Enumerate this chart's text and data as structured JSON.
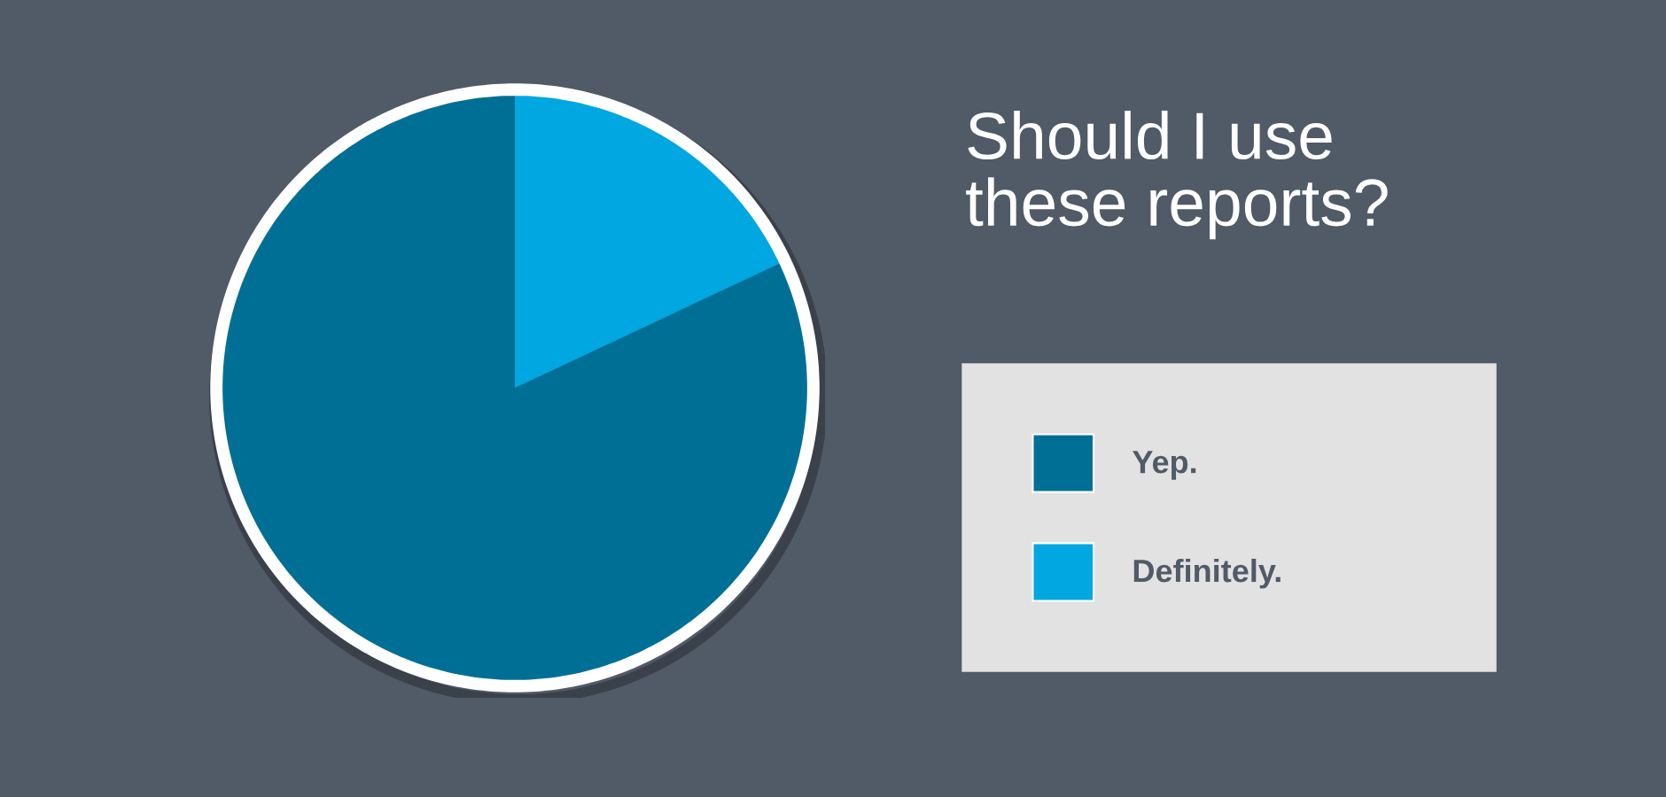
{
  "chart_data": {
    "type": "pie",
    "title": "Should I use\nthese reports?",
    "categories": [
      "Yep.",
      "Definitely."
    ],
    "values": [
      82,
      18
    ],
    "colors": [
      "#006f96",
      "#00a7e0"
    ],
    "legend": "right"
  }
}
